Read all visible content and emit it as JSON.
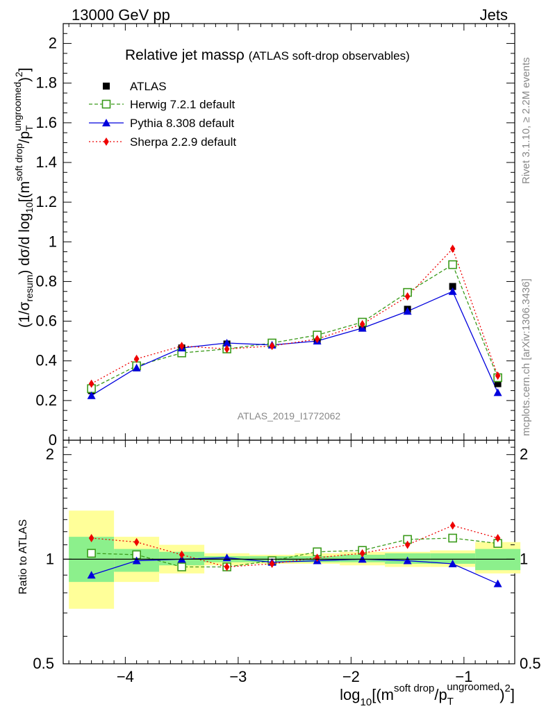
{
  "header": {
    "left": "13000 GeV pp",
    "right": "Jets"
  },
  "plot": {
    "title_main": "Relative jet mass",
    "title_rho": "ρ",
    "title_sub": "(ATLAS soft-drop observables)",
    "watermark": "ATLAS_2019_I1772062",
    "side_top": "Rivet 3.1.10, ≥ 2.2M events",
    "side_bottom": "mcplots.cern.ch [arXiv:1306.3436]",
    "ylabel_parts": {
      "a": "(1/σ",
      "a_sub": "resum",
      "b": ") dσ/d log",
      "b_sub": "10",
      "c": "[(m",
      "c_sup": "soft drop",
      "d": "/p",
      "d_sup": "ungroomed",
      "d_sub": "T",
      "e": ")",
      "e_sup": "2",
      "f": "]"
    },
    "ratio_ylabel": "Ratio to ATLAS",
    "xlabel_parts": {
      "a": "log",
      "a_sub": "10",
      "b": "[(m",
      "b_sup": "soft drop",
      "c": "/p",
      "c_sup": "ungroomed",
      "c_sub": "T",
      "d": ")",
      "d_sup": "2",
      "e": "]"
    }
  },
  "colors": {
    "atlas": "#000000",
    "herwig": "#3a9a1a",
    "pythia": "#0000dd",
    "sherpa": "#ee0000",
    "band_inner": "#8cf08c",
    "band_outer": "#ffff99"
  },
  "chart_data": {
    "type": "line",
    "xlabel": "log10[(m^soft drop/p_T^ungroomed)^2]",
    "ylabel": "(1/σ_resum) dσ/d log10[(m^soft drop/p_T^ungroomed)^2]",
    "xlim": [
      -4.55,
      -0.55
    ],
    "ylim": [
      0,
      2.1
    ],
    "ratio_ylim": [
      0.5,
      2.2
    ],
    "x_ticks": [
      "−4",
      "−3",
      "−2",
      "−1"
    ],
    "y_ticks": [
      "0",
      "0.2",
      "0.4",
      "0.6",
      "0.8",
      "1",
      "1.2",
      "1.4",
      "1.6",
      "1.8",
      "2"
    ],
    "ratio_y_ticks": [
      "0.5",
      "1",
      "2"
    ],
    "grid": false,
    "legend_position": "top-left",
    "x": [
      -4.3,
      -3.9,
      -3.5,
      -3.1,
      -2.7,
      -2.3,
      -1.9,
      -1.5,
      -1.1,
      -0.7
    ],
    "bin_edges": [
      -4.5,
      -4.1,
      -3.7,
      -3.3,
      -2.9,
      -2.5,
      -2.1,
      -1.7,
      -1.3,
      -0.9,
      -0.5
    ],
    "series": [
      {
        "name": "ATLAS",
        "values": [
          0.25,
          0.365,
          0.465,
          0.485,
          0.49,
          0.505,
          0.565,
          0.66,
          0.775,
          0.285
        ]
      },
      {
        "name": "Herwig 7.2.1 default",
        "values": [
          0.26,
          0.375,
          0.44,
          0.46,
          0.49,
          0.53,
          0.595,
          0.745,
          0.885,
          0.315
        ]
      },
      {
        "name": "Pythia 8.308 default",
        "values": [
          0.225,
          0.365,
          0.465,
          0.49,
          0.48,
          0.5,
          0.565,
          0.65,
          0.75,
          0.24
        ]
      },
      {
        "name": "Sherpa 2.2.9 default",
        "values": [
          0.285,
          0.41,
          0.475,
          0.46,
          0.475,
          0.51,
          0.585,
          0.725,
          0.965,
          0.325
        ]
      }
    ],
    "ratio_series": [
      {
        "name": "Herwig 7.2.1 default",
        "values": [
          1.04,
          1.03,
          0.95,
          0.95,
          0.99,
          1.05,
          1.06,
          1.14,
          1.15,
          1.11
        ]
      },
      {
        "name": "Pythia 8.308 default",
        "values": [
          0.9,
          0.99,
          1.0,
          1.01,
          0.98,
          0.99,
          1.0,
          0.99,
          0.97,
          0.85
        ]
      },
      {
        "name": "Sherpa 2.2.9 default",
        "values": [
          1.15,
          1.12,
          1.03,
          0.95,
          0.97,
          1.01,
          1.04,
          1.1,
          1.25,
          1.15
        ]
      }
    ],
    "uncertainty_inner": [
      [
        0.86,
        1.16
      ],
      [
        0.92,
        1.07
      ],
      [
        0.96,
        1.05
      ],
      [
        0.98,
        1.02
      ],
      [
        0.98,
        1.02
      ],
      [
        0.98,
        1.02
      ],
      [
        0.98,
        1.03
      ],
      [
        0.97,
        1.04
      ],
      [
        0.97,
        1.04
      ],
      [
        0.93,
        1.07
      ]
    ],
    "uncertainty_outer": [
      [
        0.72,
        1.38
      ],
      [
        0.86,
        1.16
      ],
      [
        0.91,
        1.1
      ],
      [
        0.96,
        1.04
      ],
      [
        0.97,
        1.03
      ],
      [
        0.97,
        1.04
      ],
      [
        0.96,
        1.05
      ],
      [
        0.95,
        1.05
      ],
      [
        0.95,
        1.06
      ],
      [
        0.91,
        1.12
      ]
    ]
  }
}
